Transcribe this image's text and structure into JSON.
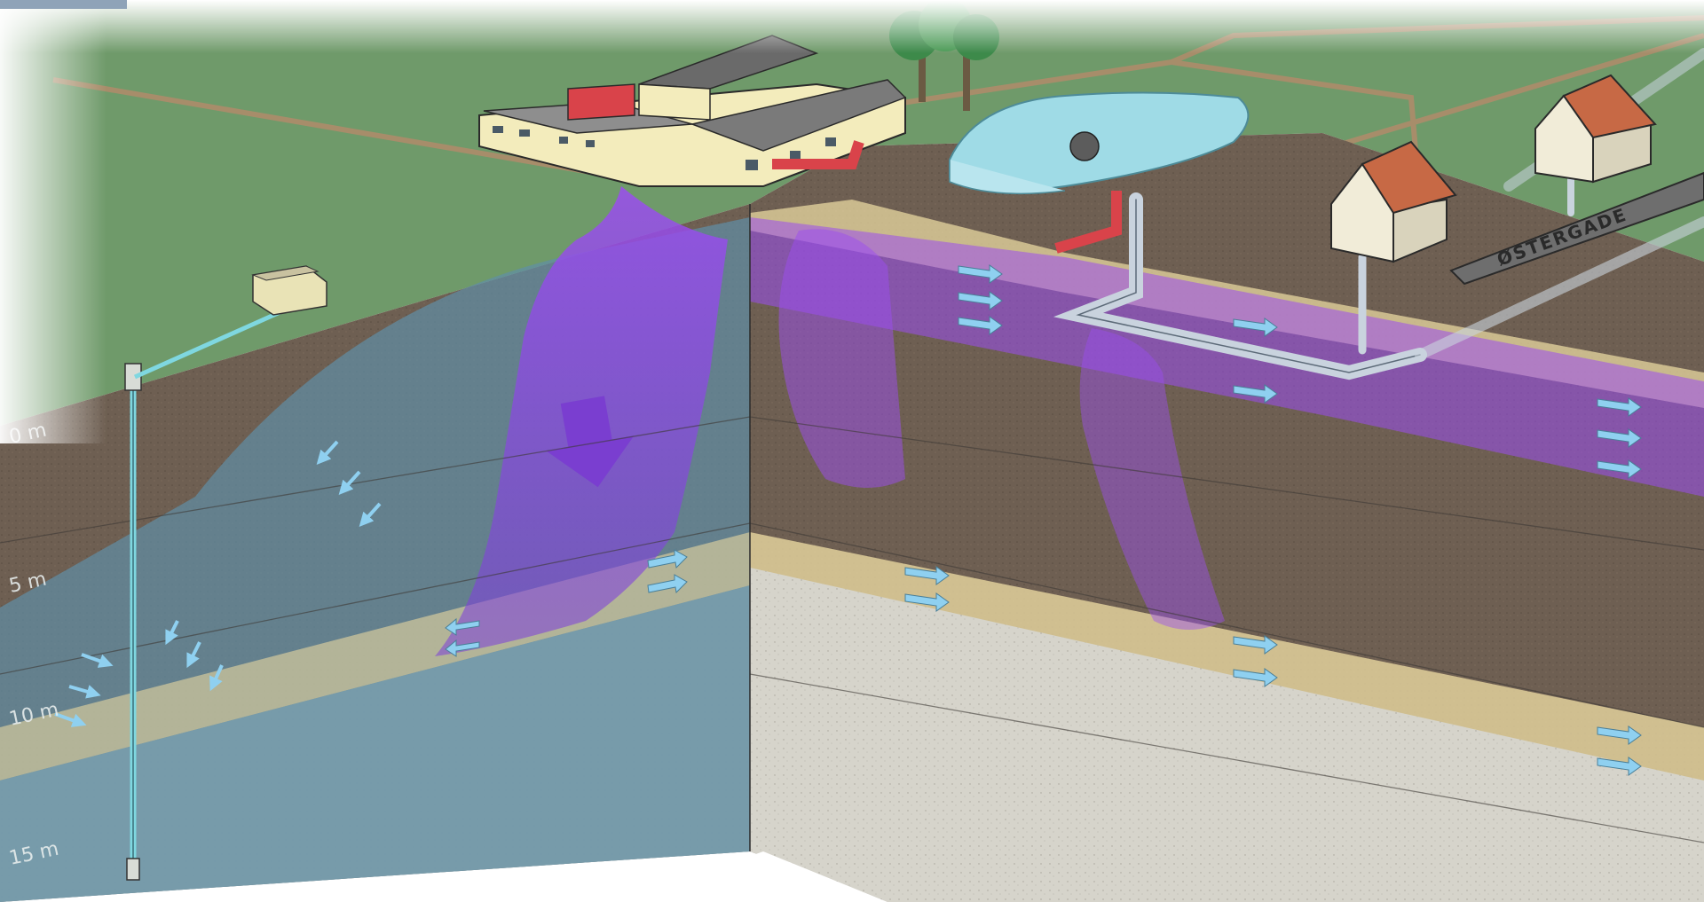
{
  "depth_labels": [
    "0 m",
    "5 m",
    "10 m",
    "15 m"
  ],
  "street_sign": "ØSTERGADE",
  "colors": {
    "grass": "#6f9a6a",
    "soil": "#6e5f52",
    "groundwater_tint": "#5f8fa6",
    "contamination": "#8a3fe0",
    "sand_layer": "#e8d7a0",
    "clay_layer": "#d8d6cc",
    "building_wall": "#f3ecbc",
    "red_pipe": "#d9434a",
    "sewer_pipe": "#c9d3de",
    "flow_arrow": "#8fd0f0"
  },
  "icons": {
    "factory": "factory-building-icon",
    "well": "monitoring-well-icon",
    "pump_house": "pump-house-icon",
    "house": "house-icon",
    "tree": "tree-icon",
    "pond": "pond-icon",
    "arrow": "flow-arrow-icon"
  }
}
